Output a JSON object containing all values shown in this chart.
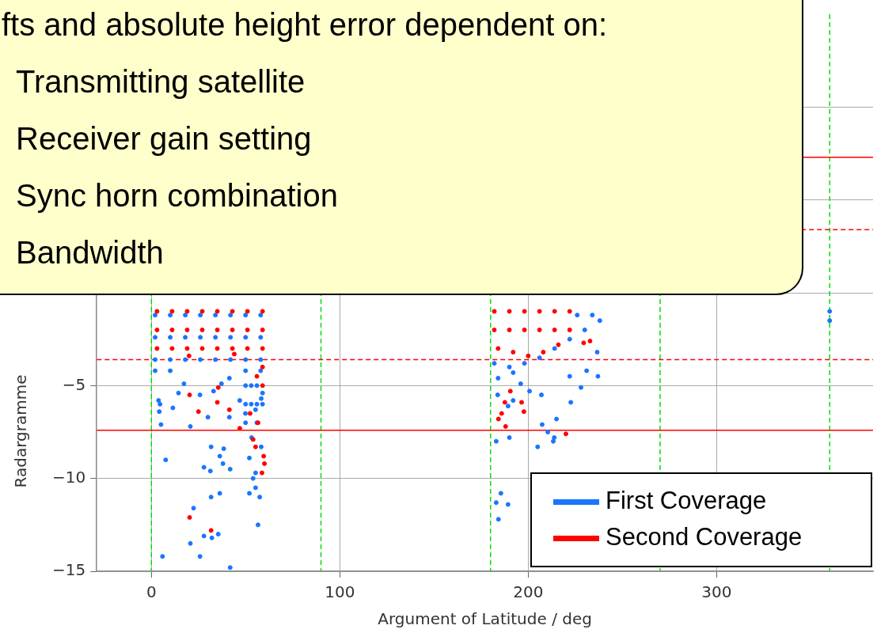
{
  "chart_data": {
    "type": "scatter",
    "xlabel": "Argument of Latitude / deg",
    "ylabel": "Radargramme",
    "annotations": [
      "fts and absolute height error dependent on:",
      "Transmitting satellite",
      "Receiver gain setting",
      "Sync horn combination",
      "Bandwidth"
    ],
    "xlim": [
      -29,
      383
    ],
    "xticks": [
      0,
      100,
      200,
      300
    ],
    "ylim": [
      -15,
      15
    ],
    "yticks": [
      -15,
      -10,
      -5,
      {
        "value": 0,
        "label": null
      },
      {
        "value": 5,
        "label": null
      },
      {
        "value": 10,
        "label": null
      }
    ],
    "grid": true,
    "legend": "bottom right",
    "marker": "circle",
    "ref_lines": [
      {
        "axis": "x",
        "value": 0,
        "color": "#00e000",
        "line_style": "dashed"
      },
      {
        "axis": "x",
        "value": 90,
        "color": "#00e000",
        "line_style": "dashed"
      },
      {
        "axis": "x",
        "value": 180,
        "color": "#00e000",
        "line_style": "dashed"
      },
      {
        "axis": "x",
        "value": 270,
        "color": "#00e000",
        "line_style": "dashed"
      },
      {
        "axis": "x",
        "value": 360,
        "color": "#00e000",
        "line_style": "dashed"
      },
      {
        "axis": "y",
        "value": 7.3,
        "color": "#ff0000",
        "line_style": "solid"
      },
      {
        "axis": "y",
        "value": 3.4,
        "color": "#ff0000",
        "line_style": "dashed"
      },
      {
        "axis": "y",
        "value": -3.6,
        "color": "#ff0000",
        "line_style": "dashed"
      },
      {
        "axis": "y",
        "value": -7.4,
        "color": "#ff0000",
        "line_style": "solid"
      }
    ],
    "series": [
      {
        "name": "First Coverage",
        "color": "#1a75ff",
        "x": [
          2,
          10,
          18,
          26,
          34,
          42,
          50,
          58,
          2,
          10,
          18,
          26,
          34,
          42,
          50,
          58,
          2,
          10,
          18,
          26,
          34,
          42,
          50,
          58,
          2,
          10,
          50,
          58,
          50,
          53,
          56,
          59,
          50,
          53,
          56,
          59,
          50,
          56,
          3.8,
          4.6,
          4.2,
          11.4,
          5.1,
          20.7,
          14.4,
          7.6,
          31.7,
          38.4,
          27.9,
          31.3,
          36.3,
          38,
          41.8,
          36.3,
          31.7,
          22.4,
          27.9,
          32.1,
          35.5,
          20.7,
          5.9,
          25.8,
          41.8,
          52,
          55.3,
          56.6,
          57.5,
          52,
          55.3,
          54,
          58.3,
          53.2,
          49.9,
          46.9,
          55.3,
          58.3,
          41.4,
          30,
          25.8,
          17.3,
          33,
          37.2,
          41.4,
          226,
          234,
          230,
          238,
          222,
          214,
          182,
          190,
          198,
          184,
          192,
          206,
          183,
          190,
          205,
          207,
          222.6,
          210.4,
          207.4,
          215,
          213.8,
          213.3,
          237,
          228,
          222,
          231,
          236.6,
          185.5,
          183,
          189.3,
          184.2,
          200.7,
          183.8,
          189.3,
          192,
          196,
          360,
          360
        ],
        "values": [
          -1.2,
          -1.2,
          -1.2,
          -1.2,
          -1.2,
          -1.2,
          -1.2,
          -1.2,
          -2.4,
          -2.4,
          -2.4,
          -2.4,
          -2.4,
          -2.4,
          -2.4,
          -2.4,
          -3.6,
          -3.6,
          -3.6,
          -3.6,
          -3.6,
          -3.6,
          -3.6,
          -3.6,
          -4.2,
          -4.2,
          -4.2,
          -4.2,
          -5,
          -5,
          -5,
          -5.4,
          -6,
          -6,
          -6,
          -6,
          -7,
          -7,
          -5.8,
          -6,
          -6.4,
          -6.2,
          -7.1,
          -7.2,
          -5.4,
          -9,
          -8.3,
          -8.4,
          -9.4,
          -9.6,
          -8.8,
          -9.2,
          -9.5,
          -10.8,
          -11,
          -11.6,
          -13.1,
          -13.2,
          -13,
          -13.5,
          -14.2,
          -14.2,
          -14.8,
          -8.9,
          -9.7,
          -12.5,
          -11,
          -10.8,
          -10.5,
          -10,
          -8.3,
          -7.8,
          -6.5,
          -5.8,
          -6.3,
          -5.7,
          -6.7,
          -6.7,
          -5.5,
          -4.9,
          -5.3,
          -4.9,
          -4.6,
          -1.2,
          -1.2,
          -2,
          -1.5,
          -2.5,
          -3,
          -3.8,
          -4,
          -3.8,
          -4.6,
          -4.3,
          -3.5,
          -8,
          -7.8,
          -8.3,
          -5.5,
          -5.9,
          -7.5,
          -7.1,
          -6.8,
          -7.8,
          -8,
          -4.5,
          -5.1,
          -4.5,
          -4.2,
          -3.2,
          -10.8,
          -11.3,
          -11.4,
          -12.2,
          -5.3,
          -5.5,
          -6.1,
          -5.8,
          -4.9,
          -1.5,
          -1
        ]
      },
      {
        "name": "Second Coverage",
        "color": "#ff0000",
        "x": [
          3,
          11,
          19,
          27,
          35,
          43,
          51,
          59,
          3,
          11,
          19,
          27,
          35,
          43,
          51,
          59,
          3,
          11,
          19,
          27,
          35,
          43,
          51,
          59,
          59,
          56,
          59,
          20,
          44,
          20.3,
          25,
          35.5,
          35,
          41.4,
          46.9,
          54,
          55.3,
          59.6,
          60,
          58.7,
          56.6,
          52.4,
          20.3,
          31.7,
          182,
          190,
          198,
          206,
          214,
          222,
          182,
          190,
          198,
          206,
          214,
          222,
          184,
          192,
          200,
          208,
          216,
          184.2,
          185.9,
          188,
          197.7,
          196.5,
          187.6,
          190.5,
          220,
          229.4,
          232.8
        ],
        "values": [
          -1,
          -1,
          -1,
          -1,
          -1,
          -1,
          -1,
          -1,
          -2,
          -2,
          -2,
          -2,
          -2,
          -2,
          -2,
          -2,
          -3,
          -3,
          -3,
          -3,
          -3,
          -3,
          -3,
          -3,
          -4,
          -4.5,
          -5,
          -3.4,
          -3.3,
          -5.5,
          -6.4,
          -5.1,
          -5.9,
          -6.3,
          -7.3,
          -7.9,
          -8.3,
          -8.8,
          -9.2,
          -9.7,
          -7,
          -6.5,
          -12.1,
          -12.8,
          -1,
          -1,
          -1,
          -1,
          -1,
          -1,
          -2,
          -2,
          -2,
          -2,
          -2,
          -2,
          -3,
          -3.2,
          -3.4,
          -3.2,
          -2.8,
          -6.8,
          -6.5,
          -7.2,
          -6.4,
          -5.9,
          -5.9,
          -5.3,
          -7.6,
          -2.7,
          -2.6
        ]
      }
    ]
  }
}
